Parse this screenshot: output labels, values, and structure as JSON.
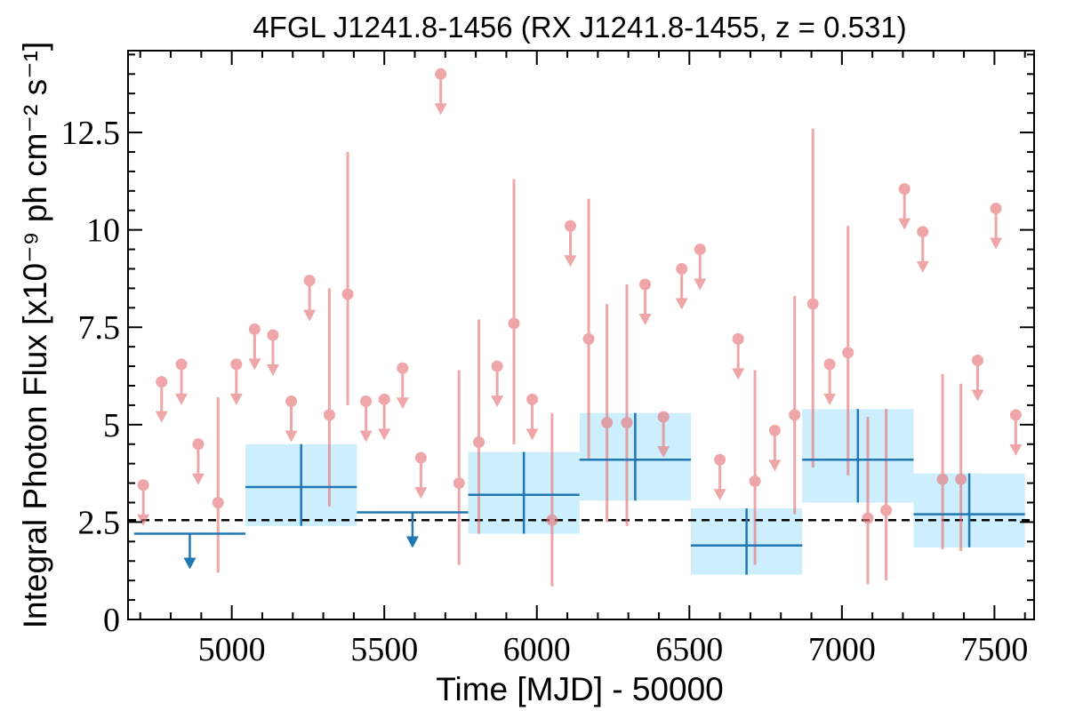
{
  "chart_data": {
    "type": "scatter",
    "title": "4FGL J1241.8-1456 (RX J1241.8-1455, z = 0.531)",
    "xlabel": "Time [MJD] - 50000",
    "ylabel": "Integral Photon Flux [x10⁻⁹ ph cm⁻² s⁻¹]",
    "xlim": [
      4660,
      7630
    ],
    "ylim": [
      0,
      14.6
    ],
    "x_ticks": [
      5000,
      5500,
      6000,
      6500,
      7000,
      7500
    ],
    "x_tick_labels": [
      "5000",
      "5500",
      "6000",
      "6500",
      "7000",
      "7500"
    ],
    "y_ticks": [
      0,
      2.5,
      5,
      7.5,
      10,
      12.5
    ],
    "y_tick_labels": [
      "0",
      "2.5",
      "5",
      "7.5",
      "10",
      "12.5"
    ],
    "reference_level": 2.55,
    "colors": {
      "short_bins": "#e8777a",
      "long_bins": "#1f77b4",
      "band": "#cdeefc",
      "reference": "#000000"
    },
    "short_bin_detections": [
      {
        "x": 4955,
        "y": 3.0,
        "lo": 1.2,
        "hi": 5.7
      },
      {
        "x": 5320,
        "y": 5.25,
        "lo": 2.9,
        "hi": 8.5
      },
      {
        "x": 5380,
        "y": 8.35,
        "lo": 5.5,
        "hi": 12.0
      },
      {
        "x": 5745,
        "y": 3.5,
        "lo": 1.4,
        "hi": 6.4
      },
      {
        "x": 5810,
        "y": 4.55,
        "lo": 2.2,
        "hi": 7.7
      },
      {
        "x": 5925,
        "y": 7.6,
        "lo": 4.5,
        "hi": 11.3
      },
      {
        "x": 6050,
        "y": 2.55,
        "lo": 0.85,
        "hi": 5.3
      },
      {
        "x": 6170,
        "y": 7.2,
        "lo": 4.1,
        "hi": 10.8
      },
      {
        "x": 6230,
        "y": 5.05,
        "lo": 2.5,
        "hi": 8.1
      },
      {
        "x": 6295,
        "y": 5.05,
        "lo": 2.4,
        "hi": 8.6
      },
      {
        "x": 6715,
        "y": 3.55,
        "lo": 1.4,
        "hi": 6.4
      },
      {
        "x": 6845,
        "y": 5.25,
        "lo": 2.7,
        "hi": 8.3
      },
      {
        "x": 6905,
        "y": 8.1,
        "lo": 3.9,
        "hi": 12.6
      },
      {
        "x": 7020,
        "y": 6.85,
        "lo": 3.7,
        "hi": 10.1
      },
      {
        "x": 7085,
        "y": 2.6,
        "lo": 0.9,
        "hi": 5.2
      },
      {
        "x": 7145,
        "y": 2.8,
        "lo": 1.0,
        "hi": 5.4
      },
      {
        "x": 7330,
        "y": 3.6,
        "lo": 1.8,
        "hi": 6.3
      },
      {
        "x": 7390,
        "y": 3.6,
        "lo": 1.75,
        "hi": 6.05
      }
    ],
    "short_bin_upper_limits": [
      {
        "x": 4710,
        "y": 3.45
      },
      {
        "x": 4770,
        "y": 6.1
      },
      {
        "x": 4835,
        "y": 6.55
      },
      {
        "x": 4890,
        "y": 4.5
      },
      {
        "x": 5015,
        "y": 6.55
      },
      {
        "x": 5075,
        "y": 7.45
      },
      {
        "x": 5135,
        "y": 7.3
      },
      {
        "x": 5195,
        "y": 5.6
      },
      {
        "x": 5255,
        "y": 8.7
      },
      {
        "x": 5440,
        "y": 5.6
      },
      {
        "x": 5500,
        "y": 5.65
      },
      {
        "x": 5560,
        "y": 6.45
      },
      {
        "x": 5620,
        "y": 4.15
      },
      {
        "x": 5685,
        "y": 14.0
      },
      {
        "x": 5870,
        "y": 6.5
      },
      {
        "x": 5985,
        "y": 5.65
      },
      {
        "x": 6110,
        "y": 10.1
      },
      {
        "x": 6355,
        "y": 8.6
      },
      {
        "x": 6415,
        "y": 5.2
      },
      {
        "x": 6475,
        "y": 9.0
      },
      {
        "x": 6535,
        "y": 9.5
      },
      {
        "x": 6600,
        "y": 4.1
      },
      {
        "x": 6660,
        "y": 7.2
      },
      {
        "x": 6780,
        "y": 4.85
      },
      {
        "x": 6960,
        "y": 6.55
      },
      {
        "x": 7205,
        "y": 11.05
      },
      {
        "x": 7265,
        "y": 9.95
      },
      {
        "x": 7445,
        "y": 6.65
      },
      {
        "x": 7505,
        "y": 10.55
      },
      {
        "x": 7570,
        "y": 5.25
      }
    ],
    "long_bin_detections": [
      {
        "x0": 5045,
        "x1": 5410,
        "y": 3.4,
        "lo": 2.4,
        "hi": 4.5
      },
      {
        "x0": 5775,
        "x1": 6140,
        "y": 3.2,
        "lo": 2.2,
        "hi": 4.3
      },
      {
        "x0": 6140,
        "x1": 6505,
        "y": 4.1,
        "lo": 3.05,
        "hi": 5.3
      },
      {
        "x0": 6505,
        "x1": 6870,
        "y": 1.9,
        "lo": 1.15,
        "hi": 2.85
      },
      {
        "x0": 6870,
        "x1": 7235,
        "y": 4.1,
        "lo": 3.0,
        "hi": 5.4
      },
      {
        "x0": 7235,
        "x1": 7600,
        "y": 2.7,
        "lo": 1.85,
        "hi": 3.75
      }
    ],
    "long_bin_upper_limits": [
      {
        "x0": 4680,
        "x1": 5045,
        "y": 2.2
      },
      {
        "x0": 5410,
        "x1": 5775,
        "y": 2.75
      }
    ]
  }
}
